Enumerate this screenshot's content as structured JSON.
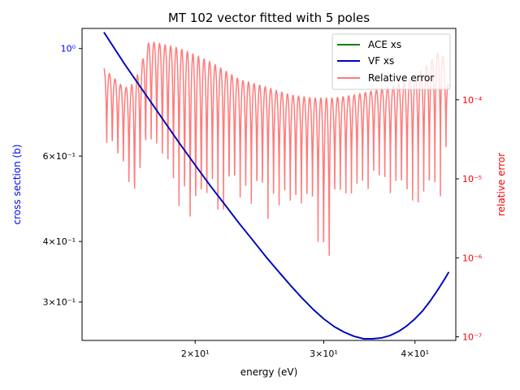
{
  "chart_data": {
    "type": "line",
    "title": "MT 102 vector fitted with 5 poles",
    "xlabel": "energy (eV)",
    "ylabel_left": "cross section (b)",
    "ylabel_right": "relative error",
    "xscale": "log",
    "yscale_left": "log",
    "yscale_right": "log",
    "xlim": [
      14.0,
      45.5
    ],
    "ylim_left": [
      0.25,
      1.1
    ],
    "ylim_right": [
      9e-08,
      0.0008
    ],
    "x_ticks": [
      {
        "value": 20,
        "label": "2×10¹"
      },
      {
        "value": 30,
        "label": "3×10¹"
      },
      {
        "value": 40,
        "label": "4×10¹"
      }
    ],
    "y_left_ticks": [
      {
        "value": 1.0,
        "label": "10⁰"
      },
      {
        "value": 0.6,
        "label": "6×10⁻¹"
      },
      {
        "value": 0.4,
        "label": "4×10⁻¹"
      },
      {
        "value": 0.3,
        "label": "3×10⁻¹"
      }
    ],
    "y_right_ticks": [
      {
        "value": 0.0001,
        "label": "10⁻⁴"
      },
      {
        "value": 1e-05,
        "label": "10⁻⁵"
      },
      {
        "value": 1e-06,
        "label": "10⁻⁶"
      },
      {
        "value": 1e-07,
        "label": "10⁻⁷"
      }
    ],
    "legend_position": "top-right",
    "series": [
      {
        "name": "ACE xs",
        "color": "#008000",
        "axis": "left",
        "points": [
          [
            15.0,
            1.08
          ],
          [
            16.0,
            0.93
          ],
          [
            17.0,
            0.815
          ],
          [
            18.0,
            0.72
          ],
          [
            19.0,
            0.64
          ],
          [
            20.0,
            0.575
          ],
          [
            21.0,
            0.52
          ],
          [
            22.0,
            0.475
          ],
          [
            23.0,
            0.435
          ],
          [
            24.0,
            0.402
          ],
          [
            25.0,
            0.372
          ],
          [
            26.0,
            0.347
          ],
          [
            27.0,
            0.325
          ],
          [
            28.0,
            0.306
          ],
          [
            29.0,
            0.29
          ],
          [
            30.0,
            0.277
          ],
          [
            31.0,
            0.267
          ],
          [
            32.0,
            0.26
          ],
          [
            33.0,
            0.255
          ],
          [
            34.0,
            0.252
          ],
          [
            35.0,
            0.252
          ],
          [
            36.0,
            0.253
          ],
          [
            37.0,
            0.256
          ],
          [
            38.0,
            0.261
          ],
          [
            39.0,
            0.268
          ],
          [
            40.0,
            0.277
          ],
          [
            41.0,
            0.288
          ],
          [
            42.0,
            0.302
          ],
          [
            43.0,
            0.318
          ],
          [
            44.0,
            0.336
          ],
          [
            44.5,
            0.346
          ]
        ]
      },
      {
        "name": "VF xs",
        "color": "#0000cc",
        "axis": "left",
        "points": [
          [
            15.0,
            1.08
          ],
          [
            16.0,
            0.93
          ],
          [
            17.0,
            0.815
          ],
          [
            18.0,
            0.72
          ],
          [
            19.0,
            0.64
          ],
          [
            20.0,
            0.575
          ],
          [
            21.0,
            0.52
          ],
          [
            22.0,
            0.475
          ],
          [
            23.0,
            0.435
          ],
          [
            24.0,
            0.402
          ],
          [
            25.0,
            0.372
          ],
          [
            26.0,
            0.347
          ],
          [
            27.0,
            0.325
          ],
          [
            28.0,
            0.306
          ],
          [
            29.0,
            0.29
          ],
          [
            30.0,
            0.277
          ],
          [
            31.0,
            0.267
          ],
          [
            32.0,
            0.26
          ],
          [
            33.0,
            0.255
          ],
          [
            34.0,
            0.252
          ],
          [
            35.0,
            0.252
          ],
          [
            36.0,
            0.253
          ],
          [
            37.0,
            0.256
          ],
          [
            38.0,
            0.261
          ],
          [
            39.0,
            0.268
          ],
          [
            40.0,
            0.277
          ],
          [
            41.0,
            0.288
          ],
          [
            42.0,
            0.302
          ],
          [
            43.0,
            0.318
          ],
          [
            44.0,
            0.336
          ],
          [
            44.5,
            0.346
          ]
        ]
      },
      {
        "name": "Relative error",
        "color": "#ff7b7b",
        "axis": "right",
        "x_range": [
          15.0,
          44.5
        ],
        "oscillations": 62,
        "envelope": [
          [
            15.0,
            0.00025
          ],
          [
            16.0,
            0.00014
          ],
          [
            16.5,
            0.00016
          ],
          [
            17.3,
            0.00055
          ],
          [
            19.0,
            0.00045
          ],
          [
            21.0,
            0.0003
          ],
          [
            23.0,
            0.00018
          ],
          [
            25.0,
            0.000145
          ],
          [
            27.0,
            0.000115
          ],
          [
            29.0,
            0.000105
          ],
          [
            31.0,
            0.000105
          ],
          [
            33.0,
            0.000115
          ],
          [
            35.0,
            0.00013
          ],
          [
            37.0,
            0.000145
          ],
          [
            39.0,
            0.00017
          ],
          [
            41.0,
            0.00024
          ],
          [
            42.5,
            0.00035
          ],
          [
            43.5,
            0.00045
          ],
          [
            44.0,
            0.00025
          ],
          [
            44.5,
            0.00015
          ]
        ],
        "minima": [
          [
            15.0,
            1.2e-05
          ],
          [
            16.0,
            6e-06
          ],
          [
            16.5,
            1.2e-06
          ],
          [
            17.3,
            1.2e-05
          ],
          [
            19.0,
            2.2e-06
          ],
          [
            19.7,
            5e-07
          ],
          [
            21.0,
            2e-06
          ],
          [
            23.0,
            2.5e-06
          ],
          [
            25.0,
            2.5e-06
          ],
          [
            27.0,
            2e-06
          ],
          [
            29.0,
            1.8e-06
          ],
          [
            30.4,
            1e-07
          ],
          [
            31.0,
            2.5e-06
          ],
          [
            33.0,
            3.5e-06
          ],
          [
            35.0,
            6e-06
          ],
          [
            37.0,
            4e-06
          ],
          [
            39.0,
            3e-06
          ],
          [
            41.0,
            2.5e-06
          ],
          [
            43.0,
            3e-06
          ],
          [
            44.5,
            2e-05
          ]
        ]
      }
    ]
  }
}
